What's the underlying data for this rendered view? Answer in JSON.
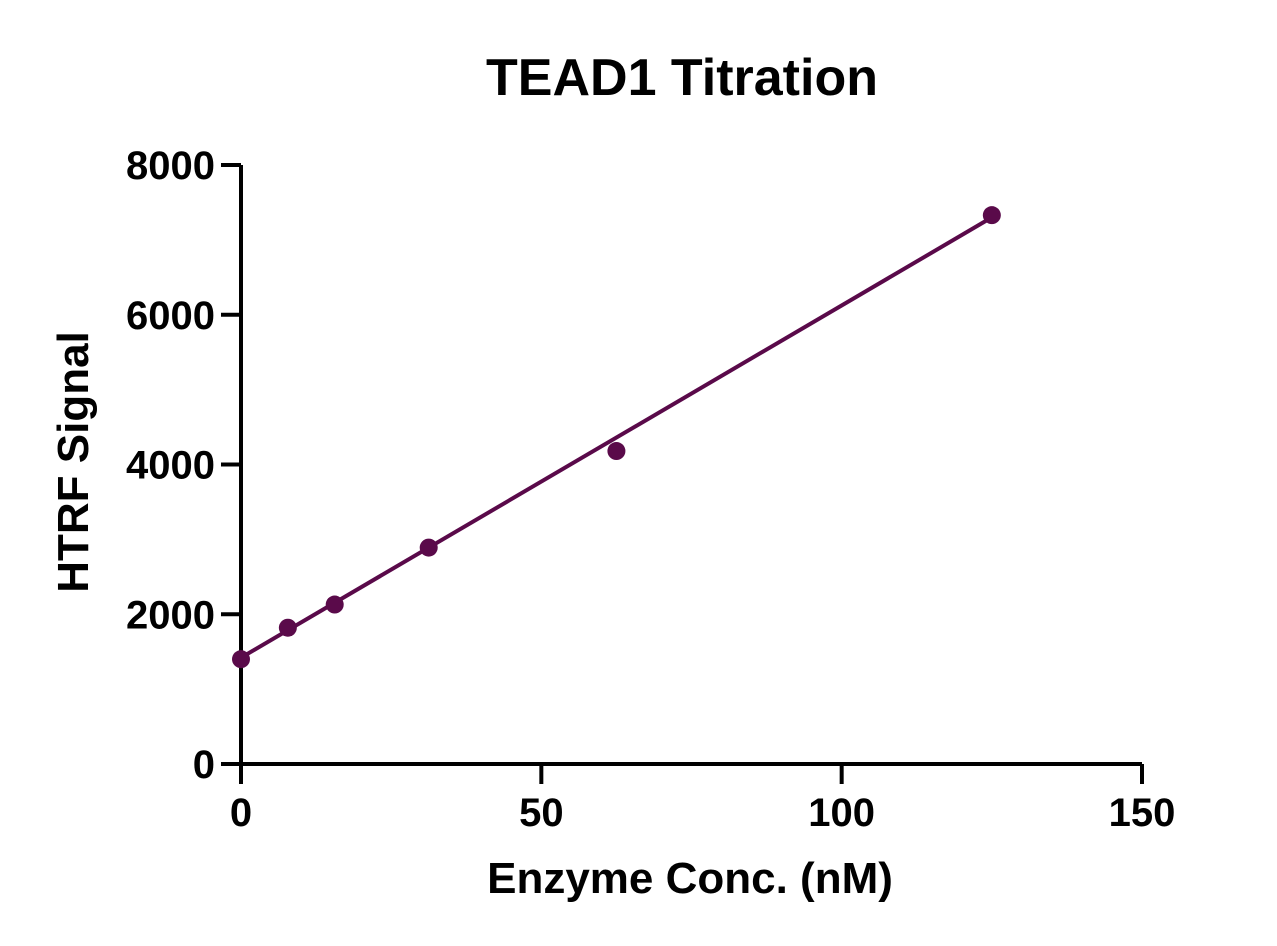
{
  "chart_data": {
    "type": "scatter",
    "title": "TEAD1 Titration",
    "xlabel": "Enzyme Conc. (nM)",
    "ylabel": "HTRF Signal",
    "xlim": [
      0,
      150
    ],
    "ylim": [
      0,
      8000
    ],
    "x_ticks": [
      0,
      50,
      100,
      150
    ],
    "y_ticks": [
      0,
      2000,
      4000,
      6000,
      8000
    ],
    "x_tick_labels": [
      "0",
      "50",
      "100",
      "150"
    ],
    "y_tick_labels": [
      "0",
      "2000",
      "4000",
      "6000",
      "8000"
    ],
    "grid": false,
    "legend": "none",
    "series": [
      {
        "color": "#5a0a4a",
        "x": [
          0,
          7.8,
          15.6,
          31.25,
          62.5,
          125
        ],
        "y": [
          1400,
          1820,
          2130,
          2890,
          4180,
          7330
        ]
      }
    ],
    "fit_line": {
      "color": "#5a0a4a",
      "x": [
        0,
        125
      ],
      "y": [
        1420,
        7300
      ]
    }
  }
}
